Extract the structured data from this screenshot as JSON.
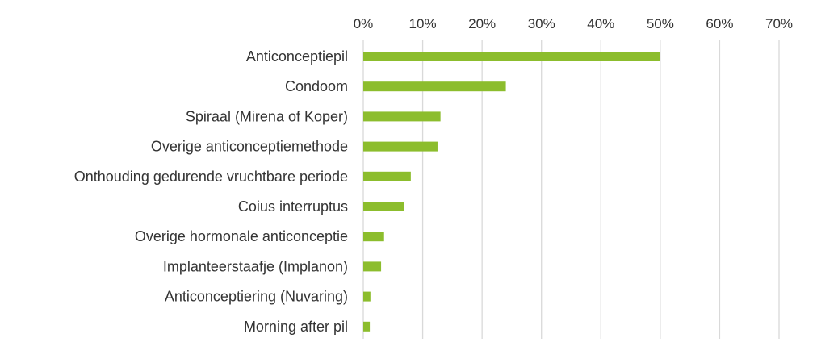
{
  "chart_data": {
    "type": "bar",
    "orientation": "horizontal",
    "categories": [
      "Anticonceptiepil",
      "Condoom",
      "Spiraal (Mirena of Koper)",
      "Overige anticonceptiemethode",
      "Onthouding gedurende vruchtbare periode",
      "Coius interruptus",
      "Overige hormonale anticonceptie",
      "Implanteerstaafje (Implanon)",
      "Anticonceptiering (Nuvaring)",
      "Morning after pil"
    ],
    "values": [
      50,
      24,
      13,
      12.5,
      8,
      6.8,
      3.5,
      3,
      1.2,
      1.1
    ],
    "xlim": [
      0,
      70
    ],
    "x_ticks": [
      "0%",
      "10%",
      "20%",
      "30%",
      "40%",
      "50%",
      "60%",
      "70%"
    ],
    "x_axis_position": "top",
    "grid": true,
    "legend": "none",
    "title": "",
    "xlabel": "",
    "ylabel": ""
  },
  "colors": {
    "bar": "#8cbd2d",
    "grid": "#d9d9d9",
    "text": "#333333"
  }
}
